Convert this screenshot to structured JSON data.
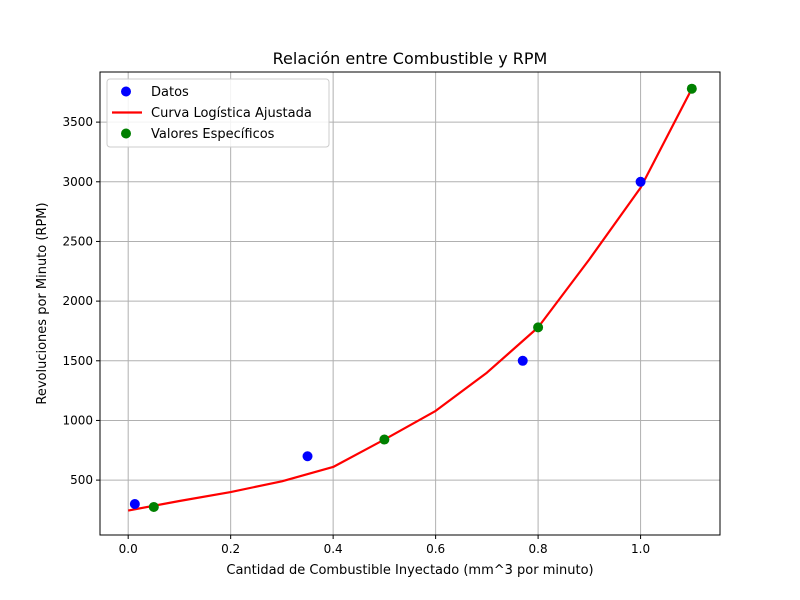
{
  "chart_data": {
    "type": "scatter",
    "title": "Relación entre Combustible y RPM",
    "xlabel": "Cantidad de Combustible Inyectado (mm^3 por minuto)",
    "ylabel": "Revoluciones por Minuto (RPM)",
    "xlim": [
      -0.055,
      1.155
    ],
    "ylim": [
      40,
      3920
    ],
    "xticks": [
      0.0,
      0.2,
      0.4,
      0.6,
      0.8,
      1.0
    ],
    "xtick_labels": [
      "0.0",
      "0.2",
      "0.4",
      "0.6",
      "0.8",
      "1.0"
    ],
    "yticks": [
      500,
      1000,
      1500,
      2000,
      2500,
      3000,
      3500
    ],
    "ytick_labels": [
      "500",
      "1000",
      "1500",
      "2000",
      "2500",
      "3000",
      "3500"
    ],
    "grid": true,
    "legend_position": "top-left",
    "series": [
      {
        "name": "Datos",
        "kind": "scatter",
        "color": "#0000ff",
        "x": [
          0.013,
          0.35,
          0.77,
          1.0
        ],
        "y": [
          300,
          700,
          1500,
          3000
        ]
      },
      {
        "name": "Curva Logística Ajustada",
        "kind": "line",
        "color": "#ff0000",
        "x": [
          0.0,
          0.1,
          0.2,
          0.3,
          0.4,
          0.5,
          0.6,
          0.7,
          0.8,
          0.9,
          1.0,
          1.1
        ],
        "y": [
          245,
          325,
          400,
          490,
          610,
          840,
          1080,
          1400,
          1780,
          2350,
          2950,
          3780
        ]
      },
      {
        "name": "Valores Específicos",
        "kind": "scatter",
        "color": "#008000",
        "x": [
          0.05,
          0.5,
          0.8,
          1.1
        ],
        "y": [
          275,
          840,
          1780,
          3780
        ]
      }
    ]
  }
}
